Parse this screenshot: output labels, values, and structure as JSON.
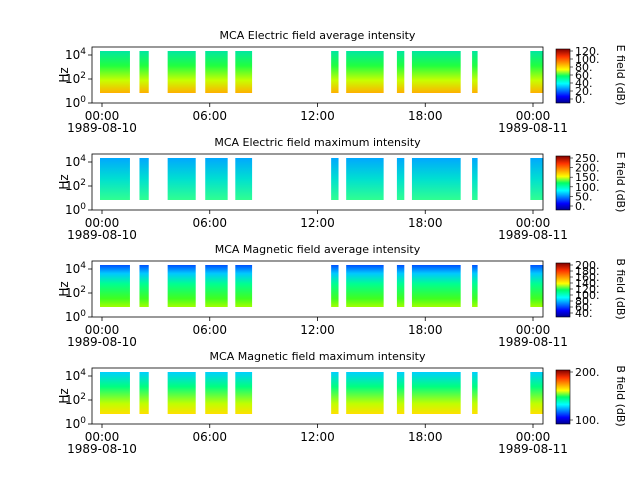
{
  "chart_data": [
    {
      "type": "heatmap",
      "title": "MCA  Electric field average intensity",
      "ylabel": "Hz",
      "y_ticks": [
        "10^0",
        "10^2",
        "10^4"
      ],
      "y_scale": "log",
      "x_ticks": [
        {
          "time": "00:00",
          "date": "1989-08-10"
        },
        {
          "time": "06:00",
          "date": ""
        },
        {
          "time": "12:00",
          "date": ""
        },
        {
          "time": "18:00",
          "date": ""
        },
        {
          "time": "00:00",
          "date": "1989-08-11"
        }
      ],
      "colorbar": {
        "label": "E field (dB)",
        "ticks": [
          "120.",
          "100.",
          "80.",
          "60.",
          "40.",
          "20.",
          "0."
        ],
        "range": [
          0,
          128
        ],
        "highlight": "#ff3300"
      },
      "data_intervals_hours": [
        [
          0.0,
          1.7
        ],
        [
          2.1,
          2.7
        ],
        [
          3.6,
          5.2
        ],
        [
          5.6,
          6.9
        ],
        [
          7.2,
          8.2
        ],
        [
          12.3,
          12.8
        ],
        [
          13.1,
          15.2
        ],
        [
          15.8,
          16.3
        ],
        [
          16.6,
          19.3
        ],
        [
          19.8,
          20.2
        ],
        [
          22.9,
          23.7
        ]
      ]
    },
    {
      "type": "heatmap",
      "title": "MCA  Electric field maximum intensity",
      "ylabel": "Hz",
      "y_ticks": [
        "10^0",
        "10^2",
        "10^4"
      ],
      "y_scale": "log",
      "x_ticks": [
        {
          "time": "00:00",
          "date": "1989-08-10"
        },
        {
          "time": "06:00",
          "date": ""
        },
        {
          "time": "12:00",
          "date": ""
        },
        {
          "time": "18:00",
          "date": ""
        },
        {
          "time": "00:00",
          "date": "1989-08-11"
        }
      ],
      "colorbar": {
        "label": "E field (dB)",
        "ticks": [
          "250.",
          "200.",
          "150.",
          "100.",
          "50.",
          "0."
        ],
        "range": [
          0,
          265
        ],
        "highlight": "#ff5500"
      },
      "data_intervals_hours": [
        [
          0.0,
          1.7
        ],
        [
          2.1,
          2.7
        ],
        [
          3.6,
          5.2
        ],
        [
          5.6,
          6.9
        ],
        [
          7.2,
          8.2
        ],
        [
          12.3,
          12.8
        ],
        [
          13.1,
          15.2
        ],
        [
          15.8,
          16.3
        ],
        [
          16.6,
          19.3
        ],
        [
          19.8,
          20.2
        ],
        [
          22.9,
          23.7
        ]
      ]
    },
    {
      "type": "heatmap",
      "title": "MCA  Magnetic field average intensity",
      "ylabel": "Hz",
      "y_ticks": [
        "10^0",
        "10^2",
        "10^4"
      ],
      "y_scale": "log",
      "x_ticks": [
        {
          "time": "00:00",
          "date": "1989-08-10"
        },
        {
          "time": "06:00",
          "date": ""
        },
        {
          "time": "12:00",
          "date": ""
        },
        {
          "time": "18:00",
          "date": ""
        },
        {
          "time": "00:00",
          "date": "1989-08-11"
        }
      ],
      "colorbar": {
        "label": "B field (dB)",
        "ticks": [
          "200.",
          "180.",
          "160.",
          "140.",
          "120.",
          "100.",
          "80.",
          "60.",
          "40."
        ],
        "range": [
          38,
          202
        ],
        "highlight": ""
      },
      "data_intervals_hours": [
        [
          0.0,
          1.7
        ],
        [
          2.1,
          2.7
        ],
        [
          3.6,
          5.2
        ],
        [
          5.6,
          6.9
        ],
        [
          7.2,
          8.2
        ],
        [
          12.3,
          12.8
        ],
        [
          13.1,
          15.2
        ],
        [
          15.8,
          16.3
        ],
        [
          16.6,
          19.3
        ],
        [
          19.8,
          20.2
        ],
        [
          22.9,
          23.7
        ]
      ]
    },
    {
      "type": "heatmap",
      "title": "MCA  Magnetic field maximum intensity",
      "ylabel": "Hz",
      "y_ticks": [
        "10^0",
        "10^2",
        "10^4"
      ],
      "y_scale": "log",
      "x_ticks": [
        {
          "time": "00:00",
          "date": "1989-08-10"
        },
        {
          "time": "06:00",
          "date": ""
        },
        {
          "time": "12:00",
          "date": ""
        },
        {
          "time": "18:00",
          "date": ""
        },
        {
          "time": "00:00",
          "date": "1989-08-11"
        }
      ],
      "colorbar": {
        "label": "B field (dB)",
        "ticks": [
          "200.",
          "100."
        ],
        "range": [
          0,
          215
        ],
        "highlight": "#ff7700"
      },
      "data_intervals_hours": [
        [
          0.0,
          1.7
        ],
        [
          2.1,
          2.7
        ],
        [
          3.6,
          5.2
        ],
        [
          5.6,
          6.9
        ],
        [
          7.2,
          8.2
        ],
        [
          12.3,
          12.8
        ],
        [
          13.1,
          15.2
        ],
        [
          15.8,
          16.3
        ],
        [
          16.6,
          19.3
        ],
        [
          19.8,
          20.2
        ],
        [
          22.9,
          23.7
        ]
      ]
    }
  ]
}
